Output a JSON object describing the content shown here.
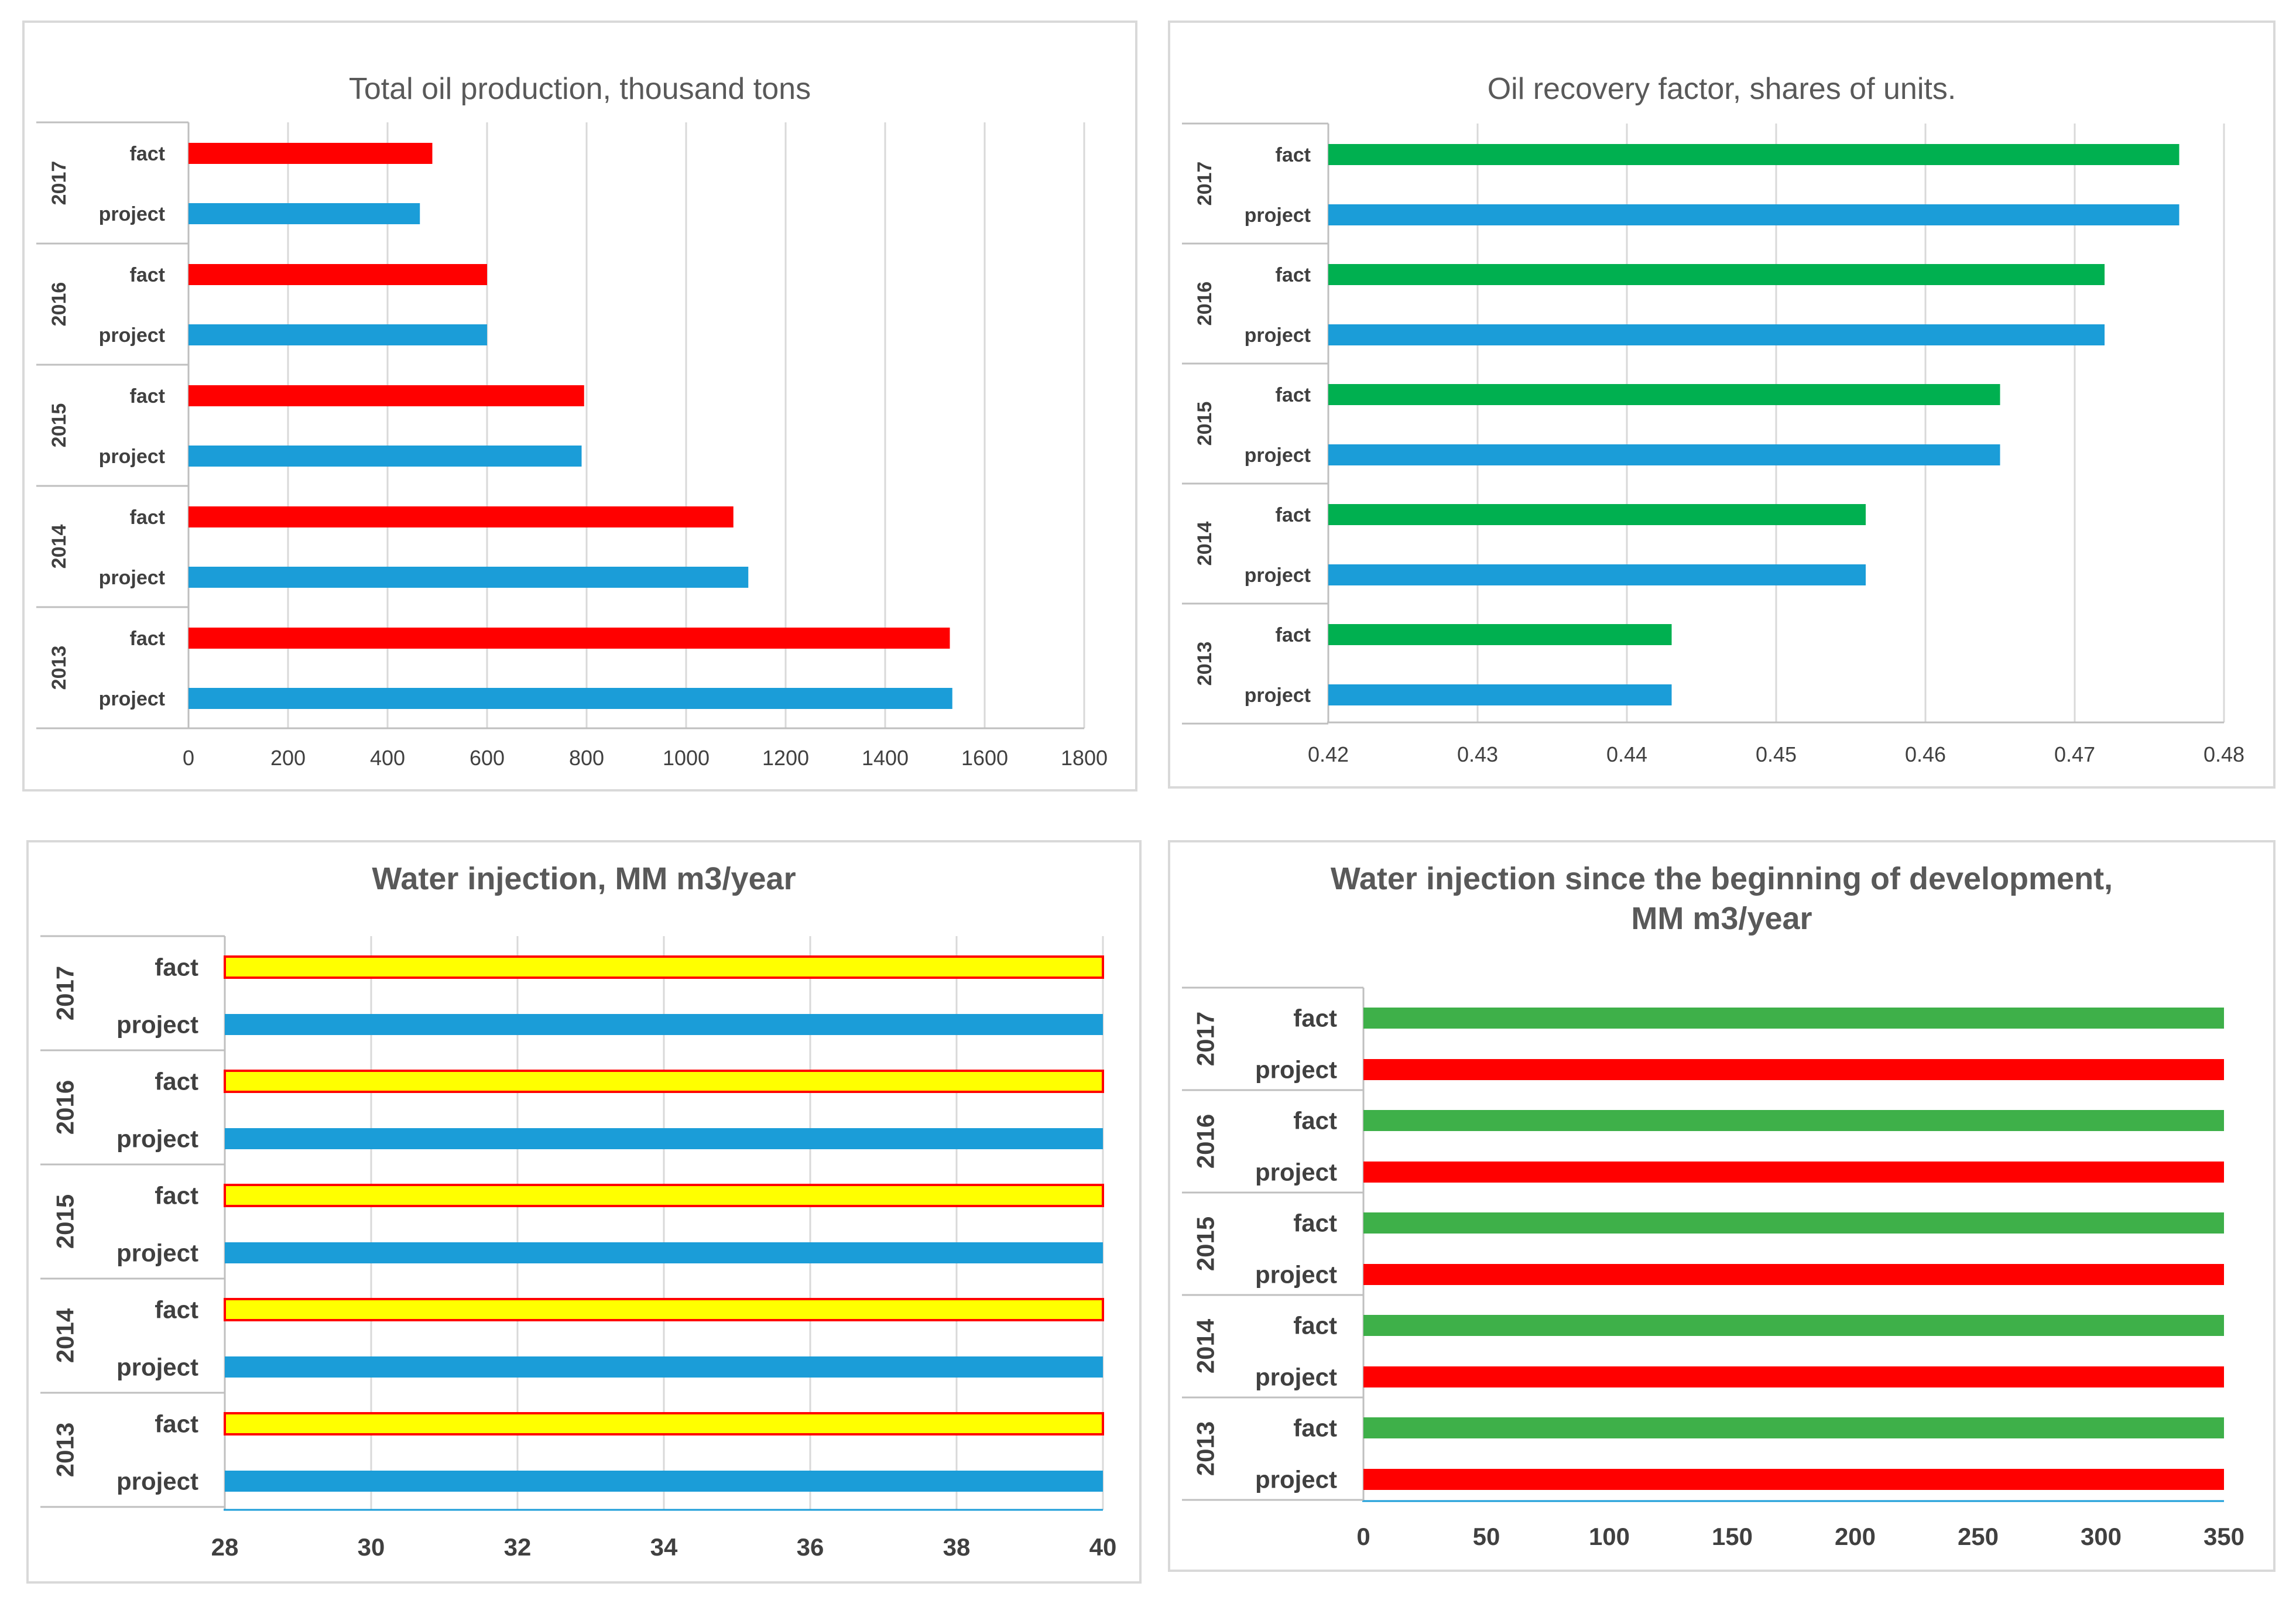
{
  "chart_data": [
    {
      "type": "bar",
      "orientation": "horizontal",
      "title": "Total oil production, thousand tons",
      "title_lines": [
        "Total oil production, thousand tons"
      ],
      "groups": [
        "2017",
        "2016",
        "2015",
        "2014",
        "2013"
      ],
      "series": [
        {
          "name": "fact",
          "color": "#ff0000",
          "outline": null,
          "values": [
            490,
            600,
            795,
            1095,
            1530
          ]
        },
        {
          "name": "project",
          "color": "#1b9dd8",
          "outline": null,
          "values": [
            465,
            600,
            790,
            1125,
            1535
          ]
        }
      ],
      "xlim": [
        0,
        1800
      ],
      "xticks": [
        0,
        200,
        400,
        600,
        800,
        1000,
        1200,
        1400,
        1600,
        1800
      ],
      "xtick_labels": [
        "0",
        "200",
        "400",
        "600",
        "800",
        "1000",
        "1200",
        "1400",
        "1600",
        "1800"
      ],
      "grid": true,
      "style": "light"
    },
    {
      "type": "bar",
      "orientation": "horizontal",
      "title": "Oil recovery factor, shares of units.",
      "title_lines": [
        "Oil recovery factor, shares of units."
      ],
      "groups": [
        "2017",
        "2016",
        "2015",
        "2014",
        "2013"
      ],
      "series": [
        {
          "name": "fact",
          "color": "#00b050",
          "outline": null,
          "values": [
            0.477,
            0.472,
            0.465,
            0.456,
            0.443
          ]
        },
        {
          "name": "project",
          "color": "#1b9dd8",
          "outline": null,
          "values": [
            0.477,
            0.472,
            0.465,
            0.456,
            0.443
          ]
        }
      ],
      "xlim": [
        0.42,
        0.48
      ],
      "xticks": [
        0.42,
        0.43,
        0.44,
        0.45,
        0.46,
        0.47,
        0.48
      ],
      "xtick_labels": [
        "0.42",
        "0.43",
        "0.44",
        "0.45",
        "0.46",
        "0.47",
        "0.48"
      ],
      "grid": true,
      "style": "light"
    },
    {
      "type": "bar",
      "orientation": "horizontal",
      "title": "Water injection, MM m3/year",
      "title_lines": [
        "Water injection, MM m3/year"
      ],
      "groups": [
        "2017",
        "2016",
        "2015",
        "2014",
        "2013"
      ],
      "series": [
        {
          "name": "fact",
          "color": "#ffff00",
          "outline": "#ff0000",
          "values": [
            40,
            40,
            40,
            40,
            40
          ]
        },
        {
          "name": "project",
          "color": "#1b9dd8",
          "outline": null,
          "values": [
            40,
            40,
            40,
            40,
            40
          ]
        }
      ],
      "xlim": [
        28,
        40
      ],
      "xticks": [
        28,
        30,
        32,
        34,
        36,
        38,
        40
      ],
      "xtick_labels": [
        "28",
        "30",
        "32",
        "34",
        "36",
        "38",
        "40"
      ],
      "grid": true,
      "style": "bold"
    },
    {
      "type": "bar",
      "orientation": "horizontal",
      "title": "Water injection since the beginning of development, MM m3/year",
      "title_lines": [
        "Water injection since the beginning of development,",
        "MM m3/year"
      ],
      "groups": [
        "2017",
        "2016",
        "2015",
        "2014",
        "2013"
      ],
      "series": [
        {
          "name": "fact",
          "color": "#3eb049",
          "outline": null,
          "values": [
            350,
            350,
            350,
            350,
            350
          ]
        },
        {
          "name": "project",
          "color": "#ff0000",
          "outline": null,
          "values": [
            350,
            350,
            350,
            350,
            350
          ]
        }
      ],
      "xlim": [
        0,
        350
      ],
      "xticks": [
        0,
        50,
        100,
        150,
        200,
        250,
        300,
        350
      ],
      "xtick_labels": [
        "0",
        "50",
        "100",
        "150",
        "200",
        "250",
        "300",
        "350"
      ],
      "grid": false,
      "style": "bold"
    }
  ]
}
